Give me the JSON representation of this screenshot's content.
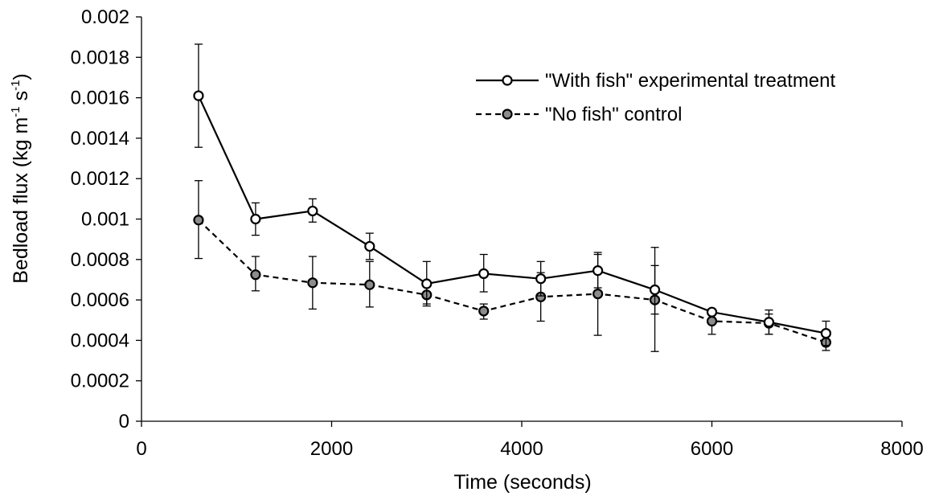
{
  "chart_data": {
    "type": "line",
    "xlabel": "Time (seconds)",
    "ylabel": "Bedload flux (kg m",
    "ylabel_sup1": "-1",
    "ylabel_mid": " s",
    "ylabel_sup2": "-1",
    "ylabel_end": ")",
    "xlim": [
      0,
      8000
    ],
    "ylim": [
      0,
      0.002
    ],
    "x_ticks": [
      0,
      2000,
      4000,
      6000,
      8000
    ],
    "x_tick_labels": [
      "0",
      "2000",
      "4000",
      "6000",
      "8000"
    ],
    "y_ticks": [
      0,
      0.0002,
      0.0004,
      0.0006,
      0.0008,
      0.001,
      0.0012,
      0.0014,
      0.0016,
      0.0018,
      0.002
    ],
    "y_tick_labels": [
      "0",
      "0.0002",
      "0.0004",
      "0.0006",
      "0.0008",
      "0.001",
      "0.0012",
      "0.0014",
      "0.0016",
      "0.0018",
      "0.002"
    ],
    "grid": false,
    "legend_position": "top-right",
    "x": [
      600,
      1200,
      1800,
      2400,
      3000,
      3600,
      4200,
      4800,
      5400,
      6000,
      6600,
      7200
    ],
    "series": [
      {
        "name": "\"With fish\" experimental treatment",
        "line_style": "solid",
        "marker_fill": "#ffffff",
        "values": [
          0.00161,
          0.001,
          0.00104,
          0.000865,
          0.00068,
          0.00073,
          0.000705,
          0.000745,
          0.00065,
          0.00054,
          0.00049,
          0.000435
        ],
        "err_high": [
          0.001865,
          0.00108,
          0.0011,
          0.00093,
          0.00079,
          0.000825,
          0.00079,
          0.000835,
          0.00086,
          0.000555,
          0.00055,
          0.000495
        ],
        "err_low": [
          0.001355,
          0.00092,
          0.000985,
          0.0008,
          0.00057,
          0.00064,
          0.00062,
          0.00066,
          0.00053,
          0.000525,
          0.00043,
          0.000375
        ]
      },
      {
        "name": "\"No fish\" control",
        "line_style": "dashed",
        "marker_fill": "#8c8c8c",
        "values": [
          0.000995,
          0.000725,
          0.000685,
          0.000675,
          0.000625,
          0.000545,
          0.000615,
          0.00063,
          0.0006,
          0.000495,
          0.000485,
          0.00039
        ],
        "err_high": [
          0.00119,
          0.000815,
          0.000815,
          0.00079,
          0.000665,
          0.00058,
          0.000735,
          0.000825,
          0.00077,
          0.00054,
          0.00053,
          0.00042
        ],
        "err_low": [
          0.000805,
          0.000645,
          0.000555,
          0.000565,
          0.00058,
          0.000505,
          0.000495,
          0.000425,
          0.000345,
          0.00043,
          0.00043,
          0.00035
        ]
      }
    ],
    "colors": {
      "line": "#000000",
      "axis": "#000000"
    }
  }
}
